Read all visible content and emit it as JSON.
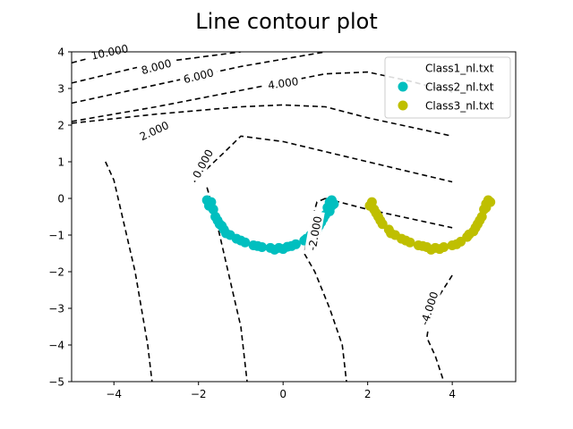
{
  "chart_data": {
    "type": "scatter",
    "title": "Line contour plot",
    "xlabel": "",
    "ylabel": "",
    "xlim": [
      -5,
      5.5
    ],
    "ylim": [
      -5,
      4
    ],
    "x_ticks": [
      -4,
      -2,
      0,
      2,
      4
    ],
    "y_ticks": [
      4,
      3,
      2,
      1,
      0,
      -1,
      -2,
      -3,
      -4,
      -5
    ],
    "grid": false,
    "legend_position": "top-right",
    "series": [
      {
        "name": "Class1_nl.txt",
        "color": "#ffffff",
        "points": []
      },
      {
        "name": "Class2_nl.txt",
        "color": "#00bfbf",
        "points": [
          [
            -1.7,
            -0.1
          ],
          [
            -1.65,
            -0.3
          ],
          [
            -1.6,
            -0.5
          ],
          [
            -1.5,
            -0.7
          ],
          [
            -1.4,
            -0.85
          ],
          [
            -1.25,
            -1.0
          ],
          [
            -1.1,
            -1.1
          ],
          [
            -0.9,
            -1.2
          ],
          [
            -0.7,
            -1.28
          ],
          [
            -0.5,
            -1.33
          ],
          [
            -0.3,
            -1.35
          ],
          [
            -0.1,
            -1.35
          ],
          [
            0.1,
            -1.32
          ],
          [
            0.3,
            -1.25
          ],
          [
            0.5,
            -1.15
          ],
          [
            0.65,
            -1.0
          ],
          [
            0.8,
            -0.85
          ],
          [
            0.9,
            -0.65
          ],
          [
            1.0,
            -0.45
          ],
          [
            1.05,
            -0.25
          ],
          [
            1.1,
            -0.1
          ],
          [
            1.15,
            -0.05
          ],
          [
            -1.75,
            -0.2
          ],
          [
            -1.55,
            -0.6
          ],
          [
            -1.35,
            -0.95
          ],
          [
            -1.0,
            -1.15
          ],
          [
            -0.6,
            -1.3
          ],
          [
            -0.2,
            -1.4
          ],
          [
            0.2,
            -1.3
          ],
          [
            0.55,
            -1.1
          ],
          [
            0.85,
            -0.75
          ],
          [
            1.1,
            -0.35
          ],
          [
            1.2,
            -0.15
          ],
          [
            -1.8,
            -0.05
          ],
          [
            -1.45,
            -0.75
          ],
          [
            0.0,
            -1.38
          ],
          [
            0.95,
            -0.55
          ],
          [
            1.15,
            -0.2
          ]
        ]
      },
      {
        "name": "Class3_nl.txt",
        "color": "#bfbf00",
        "points": [
          [
            2.1,
            -0.1
          ],
          [
            2.15,
            -0.3
          ],
          [
            2.25,
            -0.5
          ],
          [
            2.35,
            -0.7
          ],
          [
            2.5,
            -0.85
          ],
          [
            2.65,
            -1.0
          ],
          [
            2.8,
            -1.1
          ],
          [
            3.0,
            -1.2
          ],
          [
            3.2,
            -1.28
          ],
          [
            3.4,
            -1.33
          ],
          [
            3.6,
            -1.35
          ],
          [
            3.8,
            -1.33
          ],
          [
            4.0,
            -1.28
          ],
          [
            4.2,
            -1.18
          ],
          [
            4.35,
            -1.05
          ],
          [
            4.5,
            -0.9
          ],
          [
            4.6,
            -0.7
          ],
          [
            4.7,
            -0.5
          ],
          [
            4.75,
            -0.3
          ],
          [
            4.8,
            -0.15
          ],
          [
            4.85,
            -0.05
          ],
          [
            2.05,
            -0.2
          ],
          [
            2.3,
            -0.6
          ],
          [
            2.55,
            -0.95
          ],
          [
            2.9,
            -1.15
          ],
          [
            3.3,
            -1.3
          ],
          [
            3.7,
            -1.38
          ],
          [
            4.1,
            -1.25
          ],
          [
            4.4,
            -0.98
          ],
          [
            4.65,
            -0.6
          ],
          [
            4.8,
            -0.25
          ],
          [
            4.9,
            -0.1
          ],
          [
            2.2,
            -0.4
          ],
          [
            3.5,
            -1.4
          ],
          [
            4.55,
            -0.8
          ]
        ]
      }
    ],
    "contours": [
      {
        "label": "10.000",
        "points": [
          [
            -5,
            3.7
          ],
          [
            -4.0,
            4.0
          ]
        ],
        "label_at": [
          -4.1,
          4.0
        ],
        "label_angle": -12
      },
      {
        "label": "8.000",
        "points": [
          [
            -5,
            3.15
          ],
          [
            -3.0,
            3.7
          ],
          [
            -1.0,
            4.0
          ]
        ],
        "label_at": [
          -3.0,
          3.6
        ],
        "label_angle": -15
      },
      {
        "label": "6.000",
        "points": [
          [
            -5,
            2.6
          ],
          [
            -3.0,
            3.1
          ],
          [
            -1.0,
            3.6
          ],
          [
            0.5,
            3.9
          ],
          [
            1.0,
            4.0
          ]
        ],
        "label_at": [
          -2.0,
          3.35
        ],
        "label_angle": -14
      },
      {
        "label": "4.000",
        "points": [
          [
            -5,
            2.1
          ],
          [
            -3.0,
            2.5
          ],
          [
            -1.0,
            2.95
          ],
          [
            1.0,
            3.4
          ],
          [
            2.0,
            3.45
          ],
          [
            3.0,
            3.2
          ],
          [
            4.0,
            2.9
          ]
        ],
        "label_at": [
          0.0,
          3.15
        ],
        "label_angle": -8
      },
      {
        "label": "2.000",
        "points": [
          [
            -5,
            2.05
          ],
          [
            -3.0,
            2.3
          ],
          [
            -1.0,
            2.5
          ],
          [
            0.0,
            2.55
          ],
          [
            1.0,
            2.5
          ],
          [
            2.0,
            2.2
          ],
          [
            4.0,
            1.7
          ]
        ],
        "label_at": [
          -3.05,
          1.85
        ],
        "label_angle": -25
      },
      {
        "label": "0.000",
        "points": [
          [
            -2.1,
            0.45
          ],
          [
            -1.9,
            0.7
          ],
          [
            -1.4,
            1.25
          ],
          [
            -1.0,
            1.7
          ],
          [
            0.0,
            1.55
          ],
          [
            2.0,
            1.0
          ],
          [
            4.0,
            0.45
          ]
        ],
        "label_at": [
          -1.9,
          0.95
        ],
        "label_angle": -62
      },
      {
        "label": "-2.000",
        "points": [
          [
            1.0,
            0.0
          ],
          [
            0.8,
            -0.1
          ],
          [
            0.65,
            -0.7
          ],
          [
            0.5,
            -1.5
          ],
          [
            0.75,
            -2.0
          ],
          [
            1.1,
            -3.0
          ],
          [
            1.4,
            -4.0
          ],
          [
            1.5,
            -5.0
          ]
        ],
        "label_at": [
          0.75,
          -0.95
        ],
        "label_angle": -80
      },
      {
        "label": "-4.000",
        "points": [
          [
            4.0,
            -2.1
          ],
          [
            3.5,
            -3.0
          ],
          [
            3.4,
            -3.8
          ],
          [
            3.6,
            -4.3
          ],
          [
            3.8,
            -5.0
          ]
        ],
        "label_at": [
          3.45,
          -3.0
        ],
        "label_angle": -72
      },
      {
        "label": "",
        "points": [
          [
            1.0,
            0.0
          ],
          [
            2.0,
            -0.3
          ],
          [
            4.0,
            -0.8
          ]
        ]
      },
      {
        "label": "",
        "points": [
          [
            -4.2,
            1.0
          ],
          [
            -4.0,
            0.5
          ],
          [
            -3.5,
            -2.0
          ],
          [
            -3.2,
            -4.0
          ],
          [
            -3.1,
            -5.0
          ]
        ]
      },
      {
        "label": "",
        "points": [
          [
            -1.8,
            0.3
          ],
          [
            -1.6,
            -0.5
          ],
          [
            -1.4,
            -1.5
          ],
          [
            -1.2,
            -2.5
          ],
          [
            -1.0,
            -3.5
          ],
          [
            -0.85,
            -5.0
          ]
        ]
      }
    ]
  }
}
